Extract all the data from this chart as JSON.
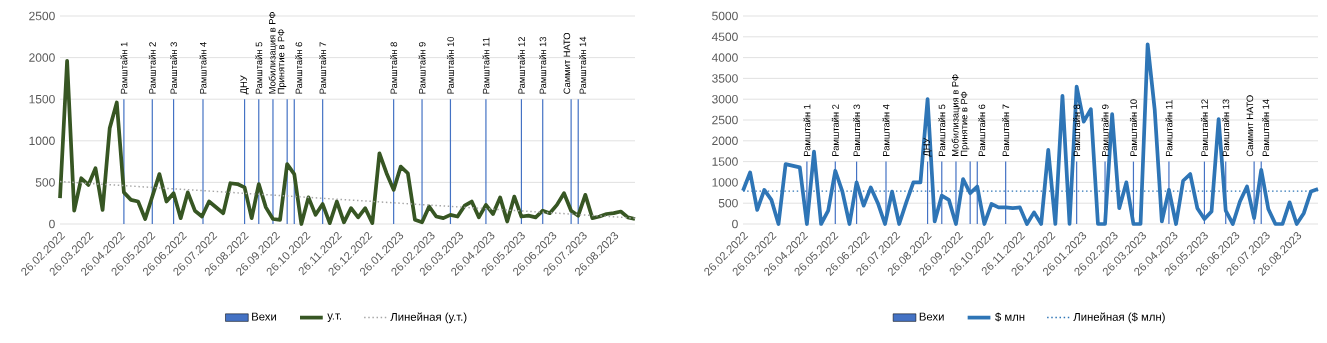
{
  "chart_data": [
    {
      "type": "line",
      "x": [
        "2022-02-26",
        "2022-03-05",
        "2022-03-12",
        "2022-03-19",
        "2022-03-26",
        "2022-04-02",
        "2022-04-09",
        "2022-04-16",
        "2022-04-23",
        "2022-04-30",
        "2022-05-07",
        "2022-05-14",
        "2022-05-21",
        "2022-05-28",
        "2022-06-04",
        "2022-06-11",
        "2022-06-18",
        "2022-06-25",
        "2022-07-02",
        "2022-07-09",
        "2022-07-16",
        "2022-07-23",
        "2022-07-30",
        "2022-08-06",
        "2022-08-13",
        "2022-08-20",
        "2022-08-27",
        "2022-09-03",
        "2022-09-10",
        "2022-09-17",
        "2022-09-24",
        "2022-10-01",
        "2022-10-08",
        "2022-10-15",
        "2022-10-22",
        "2022-10-29",
        "2022-11-05",
        "2022-11-12",
        "2022-11-19",
        "2022-11-26",
        "2022-12-03",
        "2022-12-10",
        "2022-12-17",
        "2022-12-24",
        "2022-12-31",
        "2023-01-07",
        "2023-01-14",
        "2023-01-21",
        "2023-01-28",
        "2023-02-04",
        "2023-02-11",
        "2023-02-18",
        "2023-02-25",
        "2023-03-04",
        "2023-03-11",
        "2023-03-18",
        "2023-03-25",
        "2023-04-01",
        "2023-04-08",
        "2023-04-15",
        "2023-04-22",
        "2023-04-29",
        "2023-05-06",
        "2023-05-13",
        "2023-05-20",
        "2023-05-27",
        "2023-06-03",
        "2023-06-10",
        "2023-06-17",
        "2023-06-24",
        "2023-07-01",
        "2023-07-08",
        "2023-07-15",
        "2023-07-22",
        "2023-07-29",
        "2023-08-05",
        "2023-08-12",
        "2023-08-19",
        "2023-08-26",
        "2023-09-02",
        "2023-09-09",
        "2023-09-16"
      ],
      "series": [
        {
          "name": "Вехи",
          "type": "bar",
          "color": "#4472c4",
          "x": [
            "2022-04-30",
            "2022-05-28",
            "2022-06-18",
            "2022-07-17",
            "2022-08-27",
            "2022-09-10",
            "2022-09-24",
            "2022-10-08",
            "2022-10-15",
            "2022-11-12",
            "2023-01-21",
            "2023-02-18",
            "2023-03-18",
            "2023-04-22",
            "2023-05-27",
            "2023-06-17",
            "2023-07-15",
            "2023-07-22"
          ],
          "values": [
            1500,
            1500,
            1500,
            1500,
            1500,
            1500,
            1500,
            1500,
            1500,
            1500,
            1500,
            1500,
            1500,
            1500,
            1500,
            1500,
            1500,
            1500
          ],
          "value_labels": [
            "Рамштайн 1",
            "Рамштайн 2",
            "Рамштайн 3",
            "Рамштайн 4",
            "ДНУ",
            "Рамштайн 5",
            "Мобилизация в РФ",
            "Принятие в РФ",
            "Рамштайн 6",
            "Рамштайн 7",
            "Рамштайн 8",
            "Рамштайн 9",
            "Рамштайн 10",
            "Рамштайн 11",
            "Рамштайн 12",
            "Рамштайн 13",
            "Саммит НАТО",
            "Рамштайн 14"
          ]
        },
        {
          "name": "у.т.",
          "color": "#375623",
          "values": [
            310,
            1960,
            160,
            550,
            470,
            670,
            170,
            1150,
            1460,
            380,
            290,
            270,
            60,
            330,
            600,
            270,
            370,
            70,
            380,
            160,
            90,
            270,
            200,
            130,
            490,
            480,
            440,
            70,
            480,
            200,
            60,
            50,
            720,
            600,
            0,
            320,
            110,
            240,
            10,
            270,
            20,
            190,
            80,
            190,
            10,
            850,
            610,
            410,
            690,
            610,
            50,
            20,
            210,
            90,
            70,
            110,
            90,
            220,
            270,
            80,
            230,
            120,
            320,
            30,
            330,
            90,
            100,
            80,
            160,
            130,
            230,
            370,
            160,
            100,
            350,
            70,
            90,
            120,
            130,
            150,
            80,
            60
          ]
        },
        {
          "name": "Линейная (у.т.)",
          "type": "line",
          "line_style": "dotted",
          "color": "#a6a6a6",
          "x": [
            "2022-02-26",
            "2023-09-16"
          ],
          "values": [
            510,
            70
          ]
        }
      ],
      "xlim": [
        "2022-02-26",
        "2023-09-16"
      ],
      "xticks": [
        {
          "value": "2022-02-26",
          "label": "26.02.2022"
        },
        {
          "value": "2022-03-26",
          "label": "26.03.2022"
        },
        {
          "value": "2022-04-26",
          "label": "26.04.2022"
        },
        {
          "value": "2022-05-26",
          "label": "26.05.2022"
        },
        {
          "value": "2022-06-26",
          "label": "26.06.2022"
        },
        {
          "value": "2022-07-26",
          "label": "26.07.2022"
        },
        {
          "value": "2022-08-26",
          "label": "26.08.2022"
        },
        {
          "value": "2022-09-26",
          "label": "26.09.2022"
        },
        {
          "value": "2022-10-26",
          "label": "26.10.2022"
        },
        {
          "value": "2022-11-26",
          "label": "26.11.2022"
        },
        {
          "value": "2022-12-26",
          "label": "26.12.2022"
        },
        {
          "value": "2023-01-26",
          "label": "26.01.2023"
        },
        {
          "value": "2023-02-26",
          "label": "26.02.2023"
        },
        {
          "value": "2023-03-26",
          "label": "26.03.2023"
        },
        {
          "value": "2023-04-26",
          "label": "26.04.2023"
        },
        {
          "value": "2023-05-26",
          "label": "26.05.2023"
        },
        {
          "value": "2023-06-26",
          "label": "26.06.2023"
        },
        {
          "value": "2023-07-26",
          "label": "26.07.2023"
        },
        {
          "value": "2023-08-26",
          "label": "26.08.2023"
        }
      ],
      "ylim": [
        0,
        2500
      ],
      "yticks": [
        0,
        500,
        1000,
        1500,
        2000,
        2500
      ],
      "grid": "y",
      "legend": "bottom",
      "marker": "none"
    },
    {
      "type": "line",
      "x": [
        "2022-02-26",
        "2022-03-05",
        "2022-03-12",
        "2022-03-19",
        "2022-03-26",
        "2022-04-02",
        "2022-04-09",
        "2022-04-16",
        "2022-04-23",
        "2022-04-30",
        "2022-05-07",
        "2022-05-14",
        "2022-05-21",
        "2022-05-28",
        "2022-06-04",
        "2022-06-11",
        "2022-06-18",
        "2022-06-25",
        "2022-07-02",
        "2022-07-09",
        "2022-07-16",
        "2022-07-23",
        "2022-07-30",
        "2022-08-06",
        "2022-08-13",
        "2022-08-20",
        "2022-08-27",
        "2022-09-03",
        "2022-09-10",
        "2022-09-17",
        "2022-09-24",
        "2022-10-01",
        "2022-10-08",
        "2022-10-15",
        "2022-10-22",
        "2022-10-29",
        "2022-11-05",
        "2022-11-12",
        "2022-11-19",
        "2022-11-26",
        "2022-12-03",
        "2022-12-10",
        "2022-12-17",
        "2022-12-24",
        "2022-12-31",
        "2023-01-07",
        "2023-01-14",
        "2023-01-21",
        "2023-01-28",
        "2023-02-04",
        "2023-02-11",
        "2023-02-18",
        "2023-02-25",
        "2023-03-04",
        "2023-03-11",
        "2023-03-18",
        "2023-03-25",
        "2023-04-01",
        "2023-04-08",
        "2023-04-15",
        "2023-04-22",
        "2023-04-29",
        "2023-05-06",
        "2023-05-13",
        "2023-05-20",
        "2023-05-27",
        "2023-06-03",
        "2023-06-10",
        "2023-06-17",
        "2023-06-24",
        "2023-07-01",
        "2023-07-08",
        "2023-07-15",
        "2023-07-22",
        "2023-07-29",
        "2023-08-05",
        "2023-08-12",
        "2023-08-19",
        "2023-08-26",
        "2023-09-02",
        "2023-09-09",
        "2023-09-16"
      ],
      "series": [
        {
          "name": "Вехи",
          "type": "bar",
          "color": "#4472c4",
          "x": [
            "2022-04-30",
            "2022-05-28",
            "2022-06-18",
            "2022-07-17",
            "2022-08-27",
            "2022-09-10",
            "2022-09-24",
            "2022-10-08",
            "2022-10-15",
            "2022-11-12",
            "2023-01-21",
            "2023-02-18",
            "2023-03-18",
            "2023-04-22",
            "2023-05-27",
            "2023-06-17",
            "2023-07-15",
            "2023-07-22"
          ],
          "values": [
            1500,
            1500,
            1500,
            1500,
            1500,
            1500,
            1500,
            1500,
            1500,
            1500,
            1500,
            1500,
            1500,
            1500,
            1500,
            1500,
            1500,
            1500
          ],
          "value_labels": [
            "Рамштайн 1",
            "Рамштайн 2",
            "Рамштайн 3",
            "Рамштайн 4",
            "ДНУ",
            "Рамштайн 5",
            "Мобилизация в РФ",
            "Принятие в РФ",
            "Рамштайн 6",
            "Рамштайн 7",
            "Рамштайн 8",
            "Рамштайн 9",
            "Рамштайн 10",
            "Рамштайн 11",
            "Рамштайн 12",
            "Рамштайн 13",
            "Саммит НАТО",
            "Рамштайн 14"
          ]
        },
        {
          "name": "$ млн",
          "color": "#2e75b6",
          "values": [
            800,
            1240,
            340,
            820,
            580,
            0,
            1440,
            1400,
            1360,
            0,
            1740,
            0,
            320,
            1280,
            780,
            0,
            1000,
            440,
            880,
            500,
            0,
            780,
            0,
            520,
            1000,
            1000,
            3000,
            60,
            680,
            580,
            0,
            1080,
            740,
            900,
            0,
            480,
            400,
            400,
            380,
            400,
            0,
            280,
            0,
            1780,
            0,
            3080,
            0,
            3300,
            2460,
            2760,
            0,
            0,
            2640,
            380,
            1000,
            0,
            0,
            4320,
            2740,
            60,
            820,
            0,
            1040,
            1200,
            380,
            120,
            300,
            2520,
            320,
            0,
            540,
            900,
            140,
            1300,
            360,
            0,
            0,
            520,
            0,
            260,
            780,
            840
          ]
        },
        {
          "name": "Линейная ($ млн)",
          "type": "line",
          "line_style": "dotted",
          "color": "#2e75b6",
          "x": [
            "2022-02-26",
            "2023-09-16"
          ],
          "values": [
            790,
            790
          ]
        }
      ],
      "xlim": [
        "2022-02-26",
        "2023-09-16"
      ],
      "xticks": [
        {
          "value": "2022-02-26",
          "label": "26.02.2022"
        },
        {
          "value": "2022-03-26",
          "label": "26.03.2022"
        },
        {
          "value": "2022-04-26",
          "label": "26.04.2022"
        },
        {
          "value": "2022-05-26",
          "label": "26.05.2022"
        },
        {
          "value": "2022-06-26",
          "label": "26.06.2022"
        },
        {
          "value": "2022-07-26",
          "label": "26.07.2022"
        },
        {
          "value": "2022-08-26",
          "label": "26.08.2022"
        },
        {
          "value": "2022-09-26",
          "label": "26.09.2022"
        },
        {
          "value": "2022-10-26",
          "label": "26.10.2022"
        },
        {
          "value": "2022-11-26",
          "label": "26.11.2022"
        },
        {
          "value": "2022-12-26",
          "label": "26.12.2022"
        },
        {
          "value": "2023-01-26",
          "label": "26.01.2023"
        },
        {
          "value": "2023-02-26",
          "label": "26.02.2023"
        },
        {
          "value": "2023-03-26",
          "label": "26.03.2023"
        },
        {
          "value": "2023-04-26",
          "label": "26.04.2023"
        },
        {
          "value": "2023-05-26",
          "label": "26.05.2023"
        },
        {
          "value": "2023-06-26",
          "label": "26.06.2023"
        },
        {
          "value": "2023-07-26",
          "label": "26.07.2023"
        },
        {
          "value": "2023-08-26",
          "label": "26.08.2023"
        }
      ],
      "ylim": [
        0,
        5000
      ],
      "yticks": [
        0,
        500,
        1000,
        1500,
        2000,
        2500,
        3000,
        3500,
        4000,
        4500,
        5000
      ],
      "grid": "y",
      "legend": "bottom",
      "marker": "none"
    }
  ]
}
